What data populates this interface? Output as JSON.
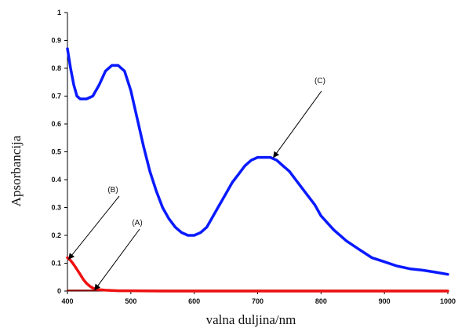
{
  "chart_data": {
    "type": "line",
    "xlabel": "valna duljina/nm",
    "ylabel": "Apsorbancija",
    "xlim": [
      400,
      1000
    ],
    "ylim": [
      0,
      1
    ],
    "xticks": [
      400,
      500,
      600,
      700,
      800,
      900,
      1000
    ],
    "yticks": [
      0,
      0.1,
      0.2,
      0.3,
      0.4,
      0.5,
      0.6,
      0.7,
      0.8,
      0.9,
      1
    ],
    "ytick_labels": [
      "0",
      "0.1",
      "0.2",
      "0.3",
      "0.4",
      "0.5",
      "0.6",
      "0.7",
      "0.8",
      "0.9",
      "1"
    ],
    "grid": false,
    "series": [
      {
        "name": "(C)",
        "color": "#0a1aff",
        "x": [
          400,
          405,
          410,
          415,
          420,
          430,
          440,
          450,
          460,
          470,
          480,
          490,
          500,
          510,
          520,
          530,
          540,
          550,
          560,
          570,
          580,
          590,
          600,
          610,
          620,
          630,
          640,
          650,
          660,
          670,
          680,
          690,
          700,
          710,
          720,
          730,
          740,
          750,
          760,
          770,
          780,
          790,
          800,
          820,
          840,
          860,
          880,
          900,
          920,
          940,
          960,
          980,
          1000
        ],
        "y": [
          0.87,
          0.8,
          0.74,
          0.7,
          0.69,
          0.69,
          0.7,
          0.74,
          0.79,
          0.81,
          0.81,
          0.79,
          0.72,
          0.62,
          0.52,
          0.43,
          0.36,
          0.3,
          0.26,
          0.23,
          0.21,
          0.2,
          0.2,
          0.21,
          0.23,
          0.27,
          0.31,
          0.35,
          0.39,
          0.42,
          0.45,
          0.47,
          0.48,
          0.48,
          0.48,
          0.47,
          0.45,
          0.43,
          0.4,
          0.37,
          0.34,
          0.31,
          0.27,
          0.22,
          0.18,
          0.15,
          0.12,
          0.105,
          0.09,
          0.08,
          0.075,
          0.068,
          0.06
        ]
      },
      {
        "name": "(B)",
        "color": "#ee1111",
        "x": [
          400,
          405,
          410,
          415,
          420,
          425,
          430,
          435,
          440,
          445,
          450,
          460,
          470,
          480,
          500,
          550,
          600,
          700,
          800,
          900,
          1000
        ],
        "y": [
          0.12,
          0.11,
          0.095,
          0.078,
          0.06,
          0.042,
          0.028,
          0.018,
          0.011,
          0.007,
          0.005,
          0.003,
          0.002,
          0.001,
          0.001,
          0.0,
          0.0,
          0.0,
          0.0,
          0.0,
          0.0
        ]
      },
      {
        "name": "(A)",
        "color": "#8b0000",
        "x": [
          400,
          1000
        ],
        "y": [
          0.002,
          0.002
        ]
      }
    ],
    "annotations": [
      {
        "label": "(C)",
        "points_to": [
          725,
          0.48
        ]
      },
      {
        "label": "(B)",
        "points_to": [
          402,
          0.115
        ]
      },
      {
        "label": "(A)",
        "points_to": [
          443,
          0.004
        ]
      }
    ]
  }
}
